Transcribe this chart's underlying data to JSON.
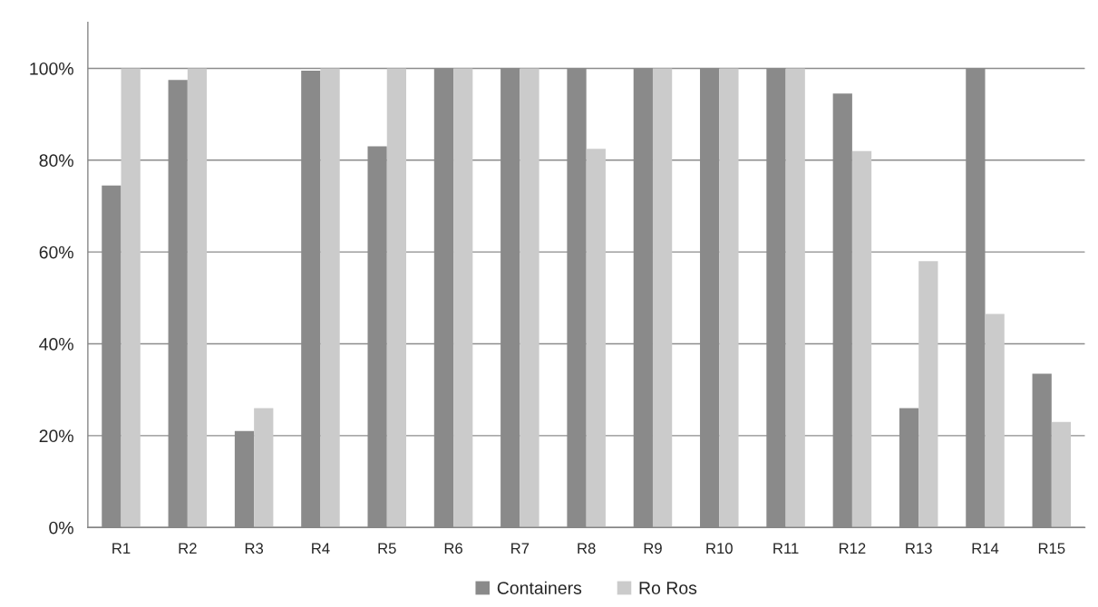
{
  "chart_data": {
    "type": "bar",
    "categories": [
      "R1",
      "R2",
      "R3",
      "R4",
      "R5",
      "R6",
      "R7",
      "R8",
      "R9",
      "R10",
      "R11",
      "R12",
      "R13",
      "R14",
      "R15"
    ],
    "series": [
      {
        "name": "Containers",
        "color": "#8a8a8a",
        "values": [
          74.5,
          97.5,
          21,
          99.5,
          83,
          100,
          100,
          100,
          100,
          100,
          100,
          94.5,
          26,
          100,
          33.5
        ]
      },
      {
        "name": "Ro Ros",
        "color": "#cbcbcb",
        "values": [
          100,
          100,
          26,
          100,
          100,
          100,
          100,
          82.5,
          100,
          100,
          100,
          82,
          58,
          46.5,
          23
        ]
      }
    ],
    "ylim": [
      0,
      110
    ],
    "yticks": [
      {
        "value": 0,
        "label": "0%"
      },
      {
        "value": 20,
        "label": "20%"
      },
      {
        "value": 40,
        "label": "40%"
      },
      {
        "value": 60,
        "label": "60%"
      },
      {
        "value": 80,
        "label": "80%"
      },
      {
        "value": 100,
        "label": "100%"
      }
    ],
    "grid": "y",
    "legend": "bottom"
  }
}
